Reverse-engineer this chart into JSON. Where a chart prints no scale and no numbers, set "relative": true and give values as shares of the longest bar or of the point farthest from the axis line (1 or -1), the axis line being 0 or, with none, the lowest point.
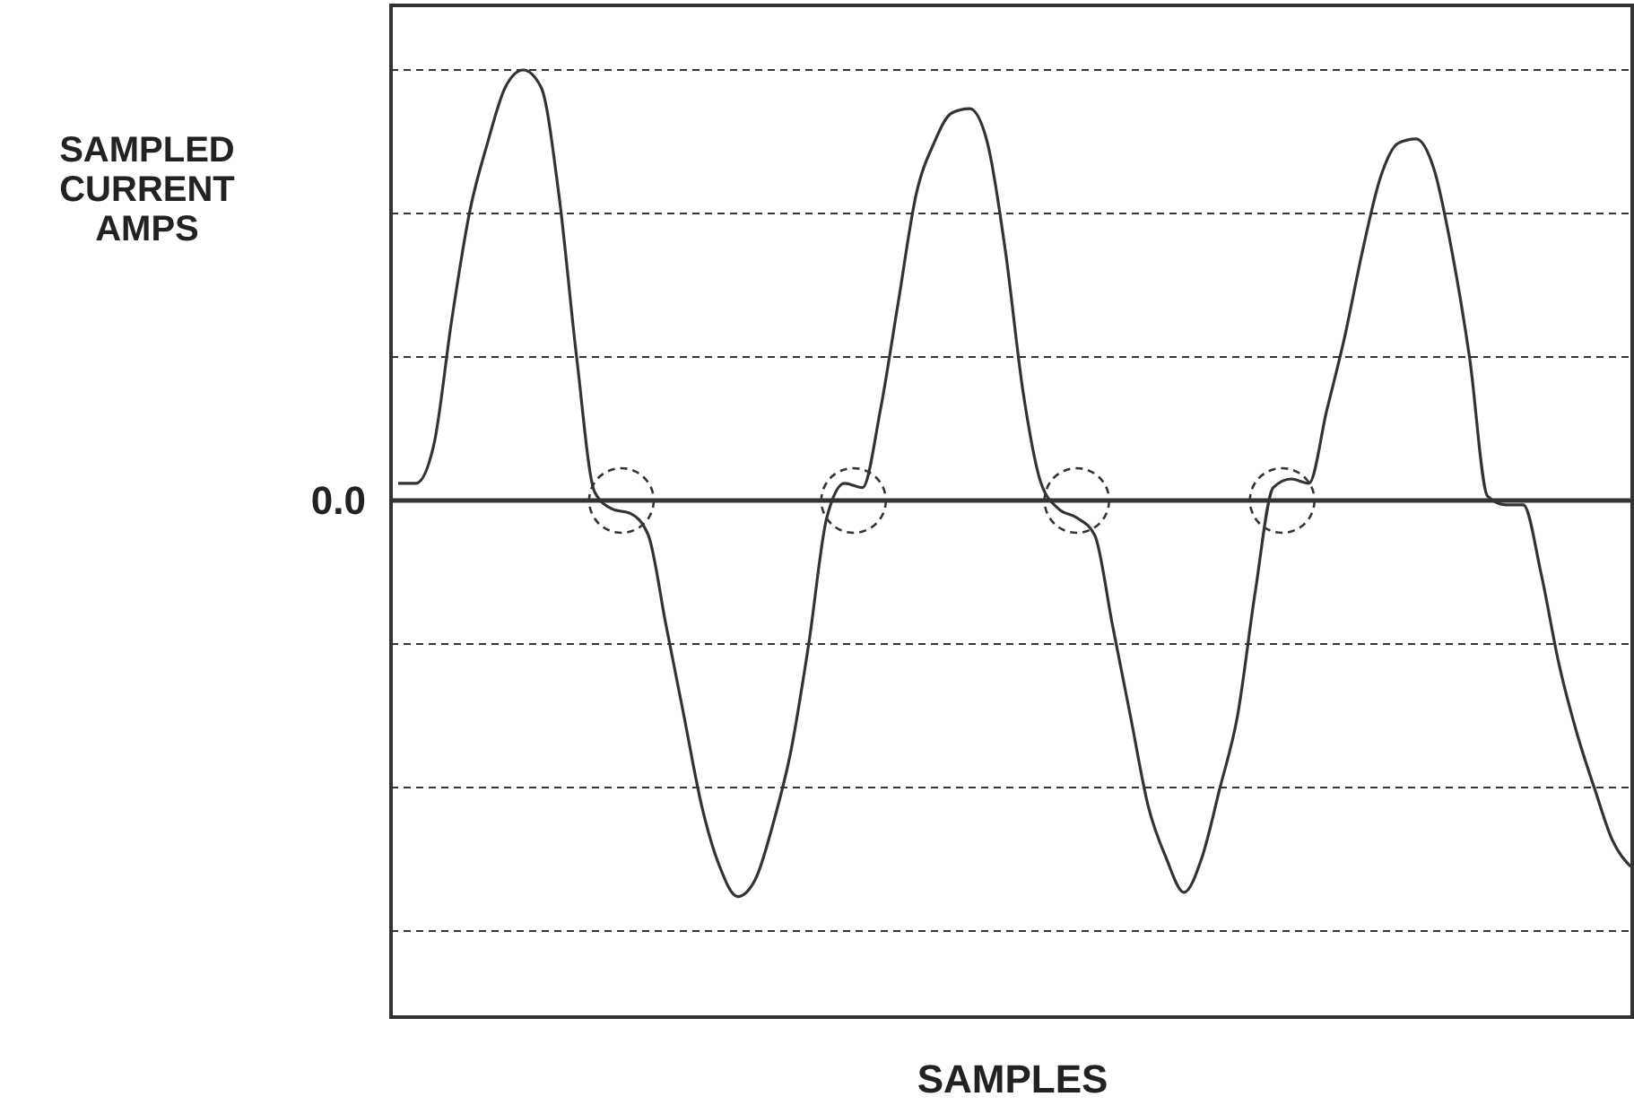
{
  "chart_data": {
    "type": "line",
    "relative": true,
    "xlabel": "SAMPLES",
    "ylabel": "SAMPLED CURRENT AMPS",
    "categories": [
      null,
      null,
      null,
      null,
      null,
      null,
      null,
      null,
      null,
      null,
      null,
      null,
      null,
      null,
      null,
      null,
      null,
      null,
      null,
      null,
      null,
      null,
      null,
      null,
      null,
      null,
      null,
      null,
      null,
      null,
      null,
      null,
      null,
      null,
      null,
      null,
      null,
      null,
      null,
      null,
      null,
      null,
      null,
      null,
      null,
      null,
      null,
      null,
      null,
      null,
      null,
      null,
      null,
      null,
      null,
      null,
      null,
      null,
      null,
      null,
      null,
      null,
      null,
      null,
      null,
      null,
      null,
      null,
      null,
      null
    ],
    "series": [
      {
        "color": "#333333",
        "values": [
          0.04,
          0.04,
          0.13,
          0.42,
          0.67,
          0.83,
          0.96,
          1,
          0.96,
          0.71,
          0.33,
          0.02,
          -0.02,
          -0.03,
          -0.08,
          -0.29,
          -0.5,
          -0.71,
          -0.85,
          -0.92,
          -0.88,
          -0.75,
          -0.58,
          -0.33,
          -0.04,
          0.04,
          0.03,
          0.21,
          0.46,
          0.71,
          0.83,
          0.9,
          0.91,
          0.83,
          0.58,
          0.25,
          0.04,
          -0.02,
          -0.04,
          -0.08,
          -0.29,
          -0.5,
          -0.71,
          -0.83,
          -0.91,
          -0.83,
          -0.67,
          -0.5,
          -0.21,
          0.03,
          0.05,
          0.04,
          0.21,
          0.38,
          0.58,
          0.75,
          0.83,
          0.84,
          0.77,
          0.58,
          0.33,
          0.01,
          -0.01,
          -0.01,
          -0.17,
          -0.38,
          -0.54,
          -0.67,
          -0.79,
          -0.85
        ]
      }
    ],
    "ref_lines": [
      {
        "axis": "y",
        "value": 0,
        "label": "0.0"
      }
    ],
    "grid": "y",
    "line_style": "solid"
  }
}
